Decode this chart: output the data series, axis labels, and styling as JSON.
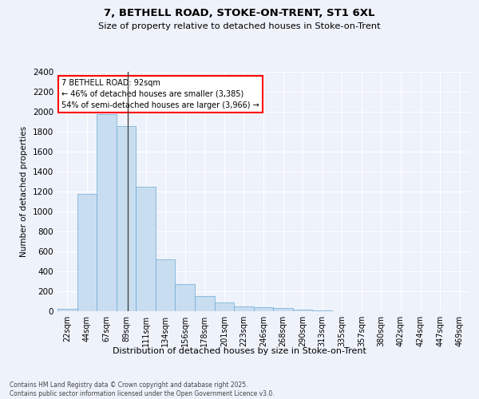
{
  "title1": "7, BETHELL ROAD, STOKE-ON-TRENT, ST1 6XL",
  "title2": "Size of property relative to detached houses in Stoke-on-Trent",
  "xlabel": "Distribution of detached houses by size in Stoke-on-Trent",
  "ylabel": "Number of detached properties",
  "categories": [
    "22sqm",
    "44sqm",
    "67sqm",
    "89sqm",
    "111sqm",
    "134sqm",
    "156sqm",
    "178sqm",
    "201sqm",
    "223sqm",
    "246sqm",
    "268sqm",
    "290sqm",
    "313sqm",
    "335sqm",
    "357sqm",
    "380sqm",
    "402sqm",
    "424sqm",
    "447sqm",
    "469sqm"
  ],
  "values": [
    25,
    1175,
    1975,
    1855,
    1250,
    520,
    275,
    155,
    85,
    45,
    40,
    35,
    15,
    10,
    3,
    3,
    2,
    1,
    1,
    0,
    0
  ],
  "bar_color": "#c9ddf0",
  "bar_edge_color": "#6aaad4",
  "marker_bin_index": 3,
  "annotation_line1": "7 BETHELL ROAD: 92sqm",
  "annotation_line2": "← 46% of detached houses are smaller (3,385)",
  "annotation_line3": "54% of semi-detached houses are larger (3,966) →",
  "ylim": [
    0,
    2400
  ],
  "yticks": [
    0,
    200,
    400,
    600,
    800,
    1000,
    1200,
    1400,
    1600,
    1800,
    2000,
    2200,
    2400
  ],
  "background_color": "#eef2fa",
  "grid_color": "#ffffff",
  "footer1": "Contains HM Land Registry data © Crown copyright and database right 2025.",
  "footer2": "Contains public sector information licensed under the Open Government Licence v3.0."
}
